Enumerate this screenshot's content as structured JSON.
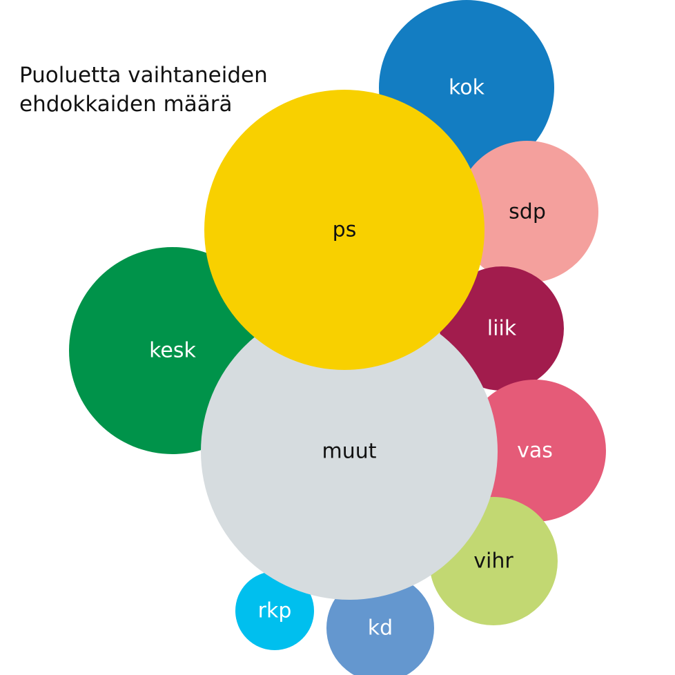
{
  "chart_data": {
    "type": "bubble",
    "title_lines": [
      "Puoluetta vaihtaneiden",
      "ehdokkaiden määrä"
    ],
    "series": [
      {
        "name": "ps",
        "label": "ps",
        "color": "#f8d000",
        "text_color": "#111111"
      },
      {
        "name": "muut",
        "label": "muut",
        "color": "#d6dcdf",
        "text_color": "#111111"
      },
      {
        "name": "kesk",
        "label": "kesk",
        "color": "#00934a",
        "text_color": "#ffffff"
      },
      {
        "name": "kok",
        "label": "kok",
        "color": "#137dc2",
        "text_color": "#ffffff"
      },
      {
        "name": "vas",
        "label": "vas",
        "color": "#e55b78",
        "text_color": "#ffffff"
      },
      {
        "name": "sdp",
        "label": "sdp",
        "color": "#f4a09d",
        "text_color": "#111111"
      },
      {
        "name": "vihr",
        "label": "vihr",
        "color": "#c2d872",
        "text_color": "#111111"
      },
      {
        "name": "liik",
        "label": "liik",
        "color": "#a21c4d",
        "text_color": "#ffffff"
      },
      {
        "name": "kd",
        "label": "kd",
        "color": "#6497cf",
        "text_color": "#ffffff"
      },
      {
        "name": "rkp",
        "label": "rkp",
        "color": "#00bfee",
        "text_color": "#ffffff"
      }
    ]
  }
}
